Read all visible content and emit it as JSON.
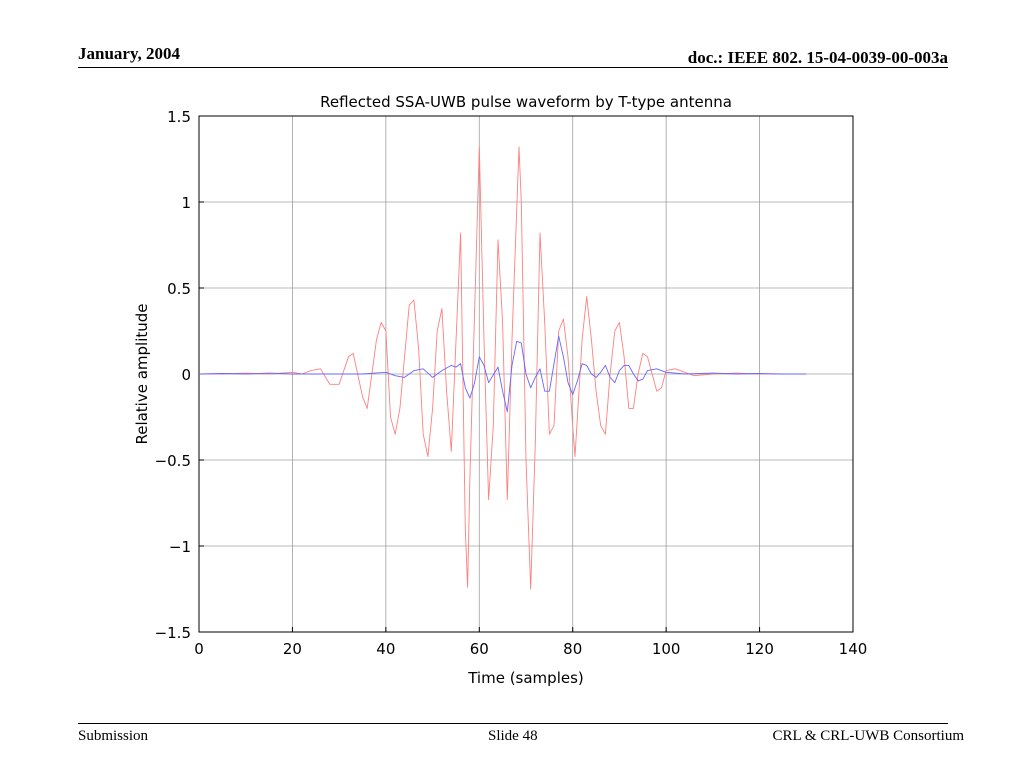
{
  "slide": {
    "header_left": "January, 2004",
    "header_right": "doc.: IEEE 802. 15-04-0039-00-003a",
    "footer_left": "Submission",
    "footer_center": "Slide 48",
    "footer_right": "CRL & CRL-UWB Consortium"
  },
  "chart_data": {
    "type": "line",
    "title": "Reflected SSA-UWB pulse waveform by T-type antenna",
    "xlabel": "Time (samples)",
    "ylabel": "Relative amplitude",
    "xlim": [
      0,
      140
    ],
    "ylim": [
      -1.5,
      1.5
    ],
    "xticks": [
      0,
      20,
      40,
      60,
      80,
      100,
      120,
      140
    ],
    "yticks": [
      -1.5,
      -1,
      -0.5,
      0,
      0.5,
      1,
      1.5
    ],
    "xtick_labels": [
      "0",
      "20",
      "40",
      "60",
      "80",
      "100",
      "120",
      "140"
    ],
    "ytick_labels": [
      "−1.5",
      "−1",
      "−0.5",
      "0",
      "0.5",
      "1",
      "1.5"
    ],
    "grid": true,
    "series": [
      {
        "color": "#ff8080",
        "points": [
          [
            0,
            0
          ],
          [
            5,
            0
          ],
          [
            10,
            0.005
          ],
          [
            15,
            0
          ],
          [
            20,
            0.01
          ],
          [
            22,
            0
          ],
          [
            24,
            0.02
          ],
          [
            26,
            0.03
          ],
          [
            28,
            -0.06
          ],
          [
            30,
            -0.06
          ],
          [
            32,
            0.1
          ],
          [
            33,
            0.12
          ],
          [
            35,
            -0.13
          ],
          [
            36,
            -0.2
          ],
          [
            38,
            0.2
          ],
          [
            39,
            0.3
          ],
          [
            40,
            0.25
          ],
          [
            41,
            -0.25
          ],
          [
            42,
            -0.35
          ],
          [
            43,
            -0.2
          ],
          [
            45,
            0.4
          ],
          [
            46,
            0.43
          ],
          [
            47,
            0.15
          ],
          [
            48,
            -0.35
          ],
          [
            49,
            -0.48
          ],
          [
            50,
            -0.2
          ],
          [
            51,
            0.25
          ],
          [
            52,
            0.38
          ],
          [
            53,
            -0.1
          ],
          [
            54,
            -0.45
          ],
          [
            56,
            0.82
          ],
          [
            57,
            -0.9
          ],
          [
            57.5,
            -1.24
          ],
          [
            58,
            -0.6
          ],
          [
            60,
            1.32
          ],
          [
            61,
            0.2
          ],
          [
            62,
            -0.73
          ],
          [
            63,
            -0.3
          ],
          [
            64,
            0.78
          ],
          [
            65,
            0.3
          ],
          [
            66,
            -0.73
          ],
          [
            67,
            0.2
          ],
          [
            68.5,
            1.32
          ],
          [
            69,
            1.0
          ],
          [
            70,
            -0.5
          ],
          [
            71,
            -1.25
          ],
          [
            72,
            -0.4
          ],
          [
            73,
            0.82
          ],
          [
            74,
            0.3
          ],
          [
            75,
            -0.35
          ],
          [
            76,
            -0.3
          ],
          [
            77,
            0.25
          ],
          [
            78,
            0.32
          ],
          [
            79,
            0.1
          ],
          [
            80,
            -0.3
          ],
          [
            80.5,
            -0.48
          ],
          [
            82,
            0.2
          ],
          [
            83,
            0.45
          ],
          [
            84,
            0.2
          ],
          [
            85,
            -0.1
          ],
          [
            86,
            -0.3
          ],
          [
            87,
            -0.35
          ],
          [
            88,
            0
          ],
          [
            89,
            0.25
          ],
          [
            90,
            0.3
          ],
          [
            91,
            0.1
          ],
          [
            92,
            -0.2
          ],
          [
            93,
            -0.2
          ],
          [
            94,
            0
          ],
          [
            95,
            0.12
          ],
          [
            96,
            0.1
          ],
          [
            97,
            0
          ],
          [
            98,
            -0.1
          ],
          [
            99,
            -0.08
          ],
          [
            100,
            0.02
          ],
          [
            102,
            0.03
          ],
          [
            104,
            0.01
          ],
          [
            106,
            -0.01
          ],
          [
            110,
            0
          ],
          [
            115,
            0.005
          ],
          [
            120,
            0
          ],
          [
            125,
            0
          ],
          [
            130,
            0
          ]
        ]
      },
      {
        "color": "#6666ff",
        "points": [
          [
            0,
            0
          ],
          [
            5,
            0.003
          ],
          [
            10,
            0
          ],
          [
            15,
            0.005
          ],
          [
            20,
            0
          ],
          [
            25,
            0
          ],
          [
            30,
            0
          ],
          [
            35,
            0
          ],
          [
            40,
            0.01
          ],
          [
            42,
            -0.01
          ],
          [
            44,
            -0.02
          ],
          [
            46,
            0.02
          ],
          [
            48,
            0.03
          ],
          [
            50,
            -0.02
          ],
          [
            52,
            0.02
          ],
          [
            54,
            0.05
          ],
          [
            55,
            0.04
          ],
          [
            56,
            0.06
          ],
          [
            57,
            -0.08
          ],
          [
            58,
            -0.14
          ],
          [
            59,
            -0.05
          ],
          [
            60,
            0.1
          ],
          [
            61,
            0.05
          ],
          [
            62,
            -0.05
          ],
          [
            64,
            0.04
          ],
          [
            65,
            -0.1
          ],
          [
            66,
            -0.22
          ],
          [
            67,
            0.05
          ],
          [
            68,
            0.19
          ],
          [
            69,
            0.18
          ],
          [
            70,
            0
          ],
          [
            71,
            -0.08
          ],
          [
            72,
            -0.02
          ],
          [
            73,
            0.03
          ],
          [
            74,
            -0.1
          ],
          [
            75,
            -0.1
          ],
          [
            76,
            0.06
          ],
          [
            77,
            0.22
          ],
          [
            78,
            0.1
          ],
          [
            79,
            -0.05
          ],
          [
            80,
            -0.12
          ],
          [
            81,
            -0.04
          ],
          [
            82,
            0.06
          ],
          [
            83,
            0.05
          ],
          [
            84,
            0
          ],
          [
            85,
            -0.02
          ],
          [
            86,
            0.01
          ],
          [
            87,
            0.05
          ],
          [
            88,
            -0.02
          ],
          [
            89,
            -0.05
          ],
          [
            90,
            0.02
          ],
          [
            91,
            0.05
          ],
          [
            92,
            0.05
          ],
          [
            93,
            0
          ],
          [
            94,
            -0.04
          ],
          [
            95,
            -0.03
          ],
          [
            96,
            0.02
          ],
          [
            98,
            0.03
          ],
          [
            100,
            0.01
          ],
          [
            104,
            0
          ],
          [
            110,
            0.005
          ],
          [
            115,
            0
          ],
          [
            120,
            0.003
          ],
          [
            125,
            0
          ],
          [
            130,
            0
          ]
        ]
      }
    ]
  }
}
